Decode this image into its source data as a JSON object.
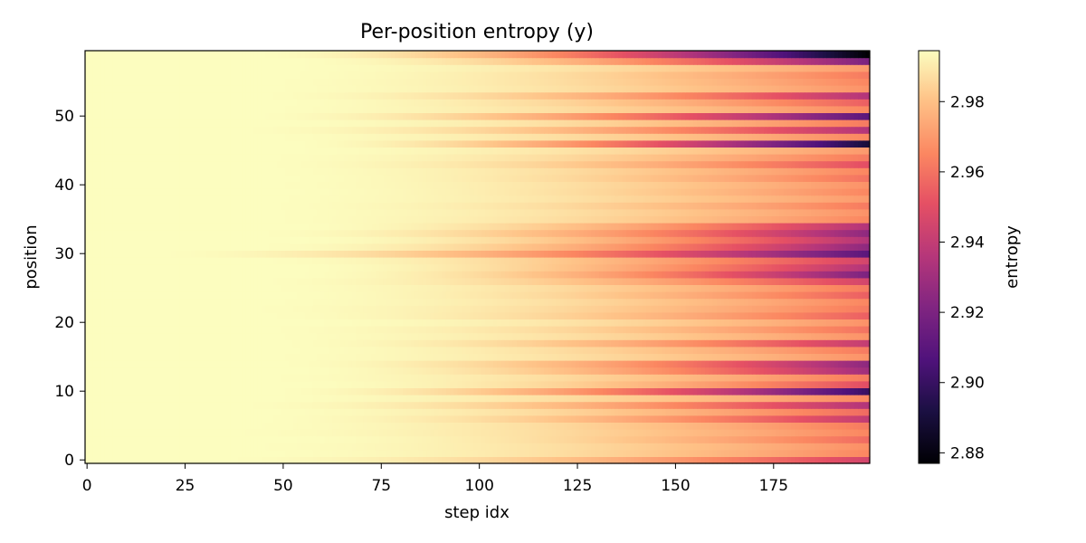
{
  "chart_data": {
    "type": "heatmap",
    "title": "Per-position entropy (y)",
    "xlabel": "step idx",
    "ylabel": "position",
    "colorbar_label": "entropy",
    "colormap": "magma",
    "x_range": [
      0,
      199
    ],
    "y_range": [
      0,
      59
    ],
    "value_range": [
      2.877,
      2.9945
    ],
    "x_ticks": [
      0,
      25,
      50,
      75,
      100,
      125,
      150,
      175
    ],
    "y_ticks": [
      0,
      10,
      20,
      30,
      40,
      50
    ],
    "colorbar_ticks": [
      "2.88",
      "2.90",
      "2.92",
      "2.94",
      "2.96",
      "2.98"
    ],
    "n_steps": 200,
    "n_positions": 60,
    "final_values_by_position": [
      2.945,
      2.965,
      2.967,
      2.958,
      2.965,
      2.962,
      2.94,
      2.958,
      2.935,
      2.965,
      2.9,
      2.95,
      2.962,
      2.93,
      2.925,
      2.968,
      2.962,
      2.94,
      2.968,
      2.96,
      2.968,
      2.955,
      2.962,
      2.965,
      2.955,
      2.962,
      2.945,
      2.92,
      2.935,
      2.945,
      2.91,
      2.925,
      2.935,
      2.925,
      2.935,
      2.965,
      2.968,
      2.962,
      2.97,
      2.965,
      2.968,
      2.96,
      2.965,
      2.95,
      2.962,
      2.97,
      2.89,
      2.965,
      2.935,
      2.962,
      2.91,
      2.965,
      2.955,
      2.935,
      2.968,
      2.965,
      2.962,
      2.97,
      2.92,
      2.877
    ],
    "decay_start_step_by_position": [
      30,
      40,
      35,
      45,
      30,
      35,
      40,
      40,
      35,
      40,
      45,
      50,
      40,
      50,
      45,
      40,
      45,
      45,
      40,
      40,
      50,
      40,
      35,
      40,
      45,
      40,
      40,
      50,
      50,
      40,
      15,
      40,
      50,
      40,
      50,
      40,
      40,
      40,
      40,
      45,
      40,
      45,
      40,
      40,
      40,
      45,
      50,
      40,
      35,
      45,
      40,
      40,
      45,
      40,
      40,
      40,
      45,
      45,
      50,
      40
    ],
    "decay_shape_exponent": 2
  }
}
